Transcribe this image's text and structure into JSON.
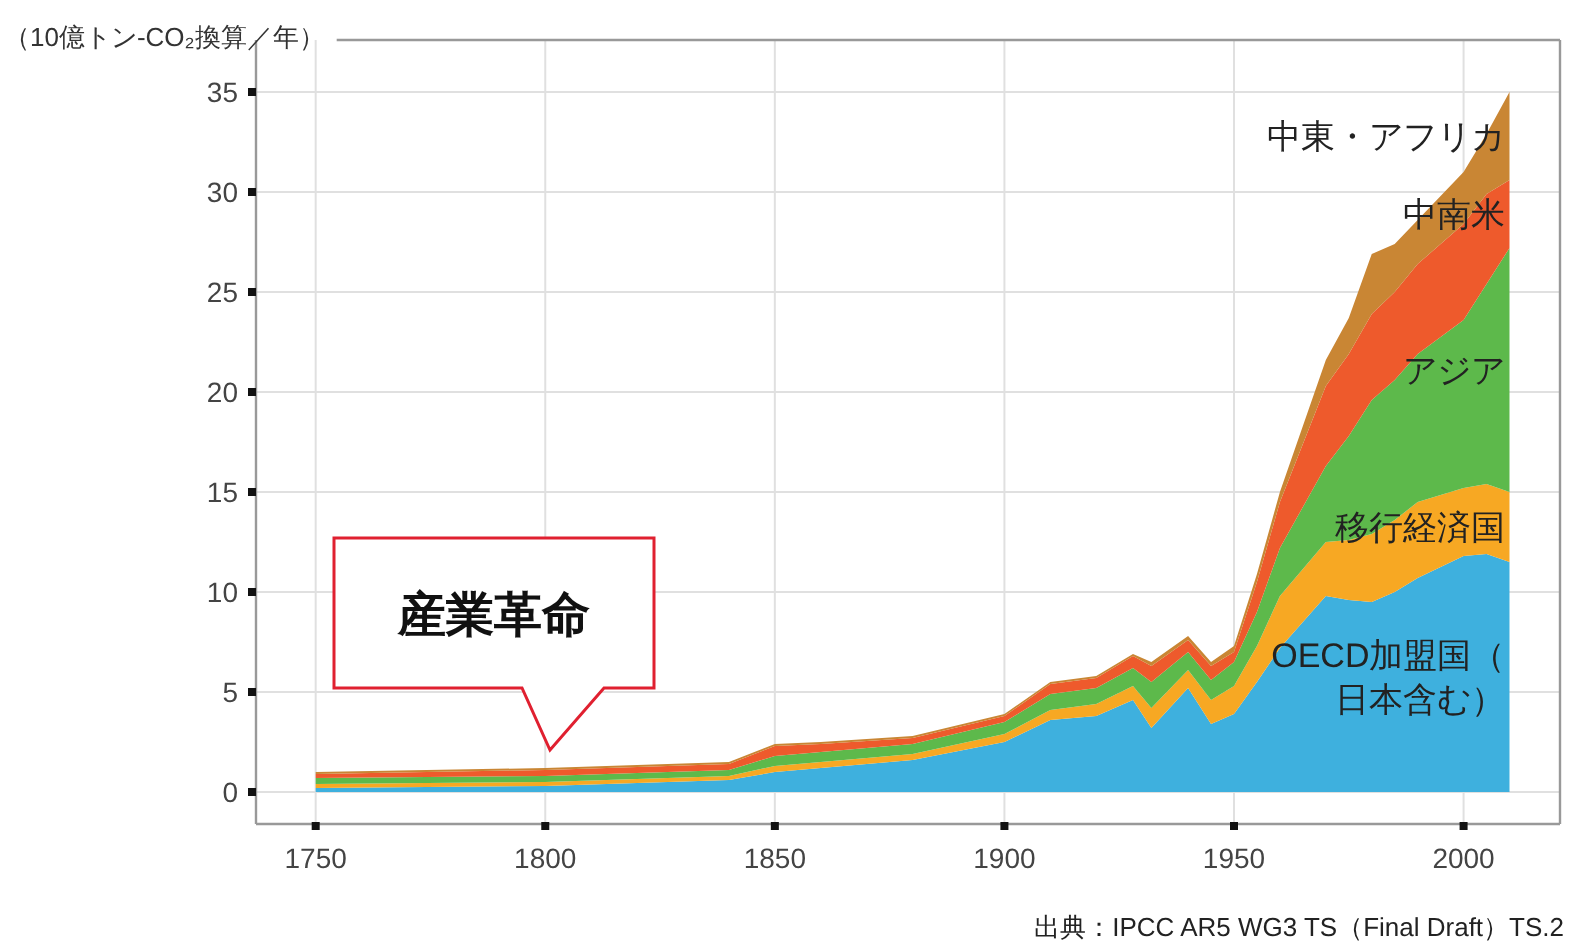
{
  "chart_data": {
    "type": "area",
    "stacked": true,
    "ylabel": "（10億トン-CO₂換算／年）",
    "x": [
      1750,
      1800,
      1840,
      1850,
      1860,
      1880,
      1900,
      1910,
      1920,
      1928,
      1932,
      1940,
      1945,
      1950,
      1955,
      1960,
      1970,
      1975,
      1980,
      1985,
      1990,
      2000,
      2005,
      2010
    ],
    "series": [
      {
        "name": "OECD加盟国（日本含む）",
        "color": "#3eb0de",
        "values": [
          0.2,
          0.3,
          0.6,
          1.0,
          1.2,
          1.6,
          2.5,
          3.6,
          3.8,
          4.6,
          3.2,
          5.2,
          3.4,
          3.9,
          5.5,
          7.2,
          9.8,
          9.6,
          9.5,
          10.0,
          10.7,
          11.8,
          11.9,
          11.5
        ]
      },
      {
        "name": "移行経済国",
        "color": "#f7a823",
        "values": [
          0.2,
          0.2,
          0.2,
          0.3,
          0.3,
          0.3,
          0.4,
          0.5,
          0.6,
          0.7,
          1.0,
          0.9,
          1.2,
          1.4,
          1.8,
          2.6,
          2.7,
          3.0,
          3.4,
          3.6,
          3.8,
          3.4,
          3.5,
          3.5
        ]
      },
      {
        "name": "アジア",
        "color": "#5db94b",
        "values": [
          0.3,
          0.3,
          0.3,
          0.5,
          0.5,
          0.5,
          0.6,
          0.8,
          0.8,
          0.9,
          1.3,
          0.9,
          1.0,
          1.2,
          1.7,
          2.4,
          3.8,
          5.2,
          6.7,
          7.0,
          7.4,
          8.4,
          10.0,
          12.2
        ]
      },
      {
        "name": "中南米",
        "color": "#ee5a2c",
        "values": [
          0.2,
          0.3,
          0.3,
          0.5,
          0.4,
          0.3,
          0.3,
          0.5,
          0.5,
          0.6,
          0.8,
          0.6,
          0.7,
          0.5,
          1.5,
          2.3,
          4.0,
          4.1,
          4.3,
          4.4,
          4.5,
          4.8,
          4.5,
          3.4
        ]
      },
      {
        "name": "中東・アフリカ",
        "color": "#c98634",
        "values": [
          0.1,
          0.1,
          0.1,
          0.1,
          0.1,
          0.1,
          0.1,
          0.1,
          0.1,
          0.1,
          0.2,
          0.2,
          0.2,
          0.3,
          0.4,
          0.5,
          1.3,
          1.8,
          3.0,
          2.4,
          2.2,
          2.6,
          3.0,
          4.4
        ]
      }
    ],
    "xlim": [
      1737,
      2021
    ],
    "ylim": [
      -1.6,
      37.6
    ],
    "xticks": [
      1750,
      1800,
      1850,
      1900,
      1950,
      2000
    ],
    "yticks": [
      0,
      5,
      10,
      15,
      20,
      25,
      30,
      35
    ],
    "grid": true,
    "annotations": [
      "産業革命",
      "出典：IPCC AR5 WG3 TS（Final Draft）TS.2"
    ]
  }
}
